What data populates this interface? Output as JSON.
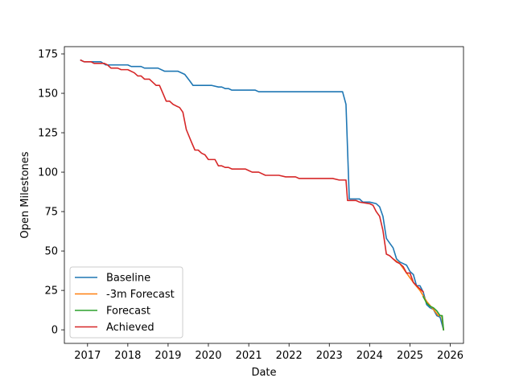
{
  "chart_data": {
    "type": "line",
    "xlabel": "Date",
    "ylabel": "Open Milestones",
    "xlim": [
      "2016-06-05",
      "2026-05-01"
    ],
    "ylim": [
      -8.6,
      179.6
    ],
    "x_ticks": [
      "2017",
      "2018",
      "2019",
      "2020",
      "2021",
      "2022",
      "2023",
      "2024",
      "2025",
      "2026"
    ],
    "y_ticks": [
      0,
      25,
      50,
      75,
      100,
      125,
      150,
      175
    ],
    "grid": false,
    "legend_position": "lower-left",
    "series": [
      {
        "name": "Baseline",
        "color": "#1f77b4",
        "points": [
          [
            "2016-11-01",
            171
          ],
          [
            "2016-12-01",
            170
          ],
          [
            "2017-02-01",
            170
          ],
          [
            "2017-05-01",
            170
          ],
          [
            "2017-06-15",
            168
          ],
          [
            "2017-09-01",
            168
          ],
          [
            "2018-01-01",
            168
          ],
          [
            "2018-02-01",
            167
          ],
          [
            "2018-05-01",
            167
          ],
          [
            "2018-06-01",
            166
          ],
          [
            "2018-10-01",
            166
          ],
          [
            "2018-12-01",
            164
          ],
          [
            "2019-04-01",
            164
          ],
          [
            "2019-06-01",
            162
          ],
          [
            "2019-07-15",
            158
          ],
          [
            "2019-08-15",
            155
          ],
          [
            "2019-10-01",
            155
          ],
          [
            "2020-02-01",
            155
          ],
          [
            "2020-04-01",
            154
          ],
          [
            "2020-05-01",
            154
          ],
          [
            "2020-06-01",
            153
          ],
          [
            "2020-07-01",
            153
          ],
          [
            "2020-08-01",
            152
          ],
          [
            "2020-12-01",
            152
          ],
          [
            "2021-03-01",
            152
          ],
          [
            "2021-04-01",
            151
          ],
          [
            "2022-01-01",
            151
          ],
          [
            "2023-04-01",
            151
          ],
          [
            "2023-05-01",
            151
          ],
          [
            "2023-06-01",
            143
          ],
          [
            "2023-07-01",
            83
          ],
          [
            "2023-10-01",
            83
          ],
          [
            "2023-11-01",
            81
          ],
          [
            "2024-01-01",
            81
          ],
          [
            "2024-03-01",
            80
          ],
          [
            "2024-04-01",
            78
          ],
          [
            "2024-05-01",
            72
          ],
          [
            "2024-06-01",
            58
          ],
          [
            "2024-07-01",
            55
          ],
          [
            "2024-08-01",
            52
          ],
          [
            "2024-09-01",
            45
          ],
          [
            "2024-10-01",
            43
          ],
          [
            "2024-11-01",
            42
          ],
          [
            "2024-12-01",
            41
          ],
          [
            "2025-01-01",
            37
          ],
          [
            "2025-02-01",
            35
          ],
          [
            "2025-03-01",
            28
          ],
          [
            "2025-04-01",
            28
          ],
          [
            "2025-05-01",
            24
          ],
          [
            "2025-06-01",
            16
          ],
          [
            "2025-07-01",
            14
          ],
          [
            "2025-08-01",
            13
          ],
          [
            "2025-09-01",
            9
          ],
          [
            "2025-10-01",
            8
          ],
          [
            "2025-11-01",
            0
          ]
        ]
      },
      {
        "name": "-3m Forecast",
        "color": "#ff7f0e",
        "points": [
          [
            "2024-08-01",
            45
          ],
          [
            "2024-10-01",
            42
          ],
          [
            "2024-12-01",
            36
          ],
          [
            "2025-02-01",
            30
          ],
          [
            "2025-04-01",
            25
          ],
          [
            "2025-06-01",
            18
          ],
          [
            "2025-08-01",
            13
          ],
          [
            "2025-09-15",
            9
          ],
          [
            "2025-10-15",
            9
          ],
          [
            "2025-11-01",
            0
          ]
        ]
      },
      {
        "name": "Forecast",
        "color": "#2ca02c",
        "points": [
          [
            "2025-05-01",
            21
          ],
          [
            "2025-06-01",
            17
          ],
          [
            "2025-07-01",
            15
          ],
          [
            "2025-08-01",
            14
          ],
          [
            "2025-09-01",
            12
          ],
          [
            "2025-10-01",
            9
          ],
          [
            "2025-10-20",
            9
          ],
          [
            "2025-11-01",
            0
          ]
        ]
      },
      {
        "name": "Achieved",
        "color": "#d62728",
        "points": [
          [
            "2016-11-01",
            171
          ],
          [
            "2016-12-01",
            170
          ],
          [
            "2017-02-01",
            170
          ],
          [
            "2017-03-01",
            169
          ],
          [
            "2017-06-01",
            169
          ],
          [
            "2017-07-01",
            168
          ],
          [
            "2017-08-01",
            166
          ],
          [
            "2017-10-01",
            166
          ],
          [
            "2017-11-01",
            165
          ],
          [
            "2018-01-01",
            165
          ],
          [
            "2018-03-01",
            163
          ],
          [
            "2018-04-01",
            161
          ],
          [
            "2018-05-01",
            161
          ],
          [
            "2018-06-01",
            159
          ],
          [
            "2018-07-15",
            159
          ],
          [
            "2018-08-15",
            157
          ],
          [
            "2018-09-15",
            155
          ],
          [
            "2018-10-15",
            155
          ],
          [
            "2018-11-15",
            150
          ],
          [
            "2018-12-15",
            145
          ],
          [
            "2019-01-15",
            145
          ],
          [
            "2019-02-15",
            143
          ],
          [
            "2019-03-15",
            142
          ],
          [
            "2019-04-15",
            141
          ],
          [
            "2019-05-15",
            138
          ],
          [
            "2019-06-15",
            127
          ],
          [
            "2019-08-01",
            119
          ],
          [
            "2019-09-01",
            114
          ],
          [
            "2019-10-01",
            114
          ],
          [
            "2019-11-01",
            112
          ],
          [
            "2019-12-01",
            111
          ],
          [
            "2020-01-01",
            108
          ],
          [
            "2020-03-01",
            108
          ],
          [
            "2020-04-01",
            104
          ],
          [
            "2020-05-01",
            104
          ],
          [
            "2020-06-01",
            103
          ],
          [
            "2020-07-01",
            103
          ],
          [
            "2020-08-01",
            102
          ],
          [
            "2020-10-01",
            102
          ],
          [
            "2020-12-01",
            102
          ],
          [
            "2021-01-01",
            101
          ],
          [
            "2021-02-01",
            100
          ],
          [
            "2021-04-01",
            100
          ],
          [
            "2021-06-01",
            98
          ],
          [
            "2021-08-01",
            98
          ],
          [
            "2021-10-01",
            98
          ],
          [
            "2021-12-01",
            97
          ],
          [
            "2022-03-01",
            97
          ],
          [
            "2022-04-01",
            96
          ],
          [
            "2022-06-01",
            96
          ],
          [
            "2022-10-01",
            96
          ],
          [
            "2023-02-01",
            96
          ],
          [
            "2023-04-01",
            95
          ],
          [
            "2023-06-01",
            95
          ],
          [
            "2023-06-15",
            82
          ],
          [
            "2023-09-01",
            82
          ],
          [
            "2023-10-01",
            81
          ],
          [
            "2024-01-01",
            80
          ],
          [
            "2024-02-01",
            79
          ],
          [
            "2024-03-01",
            75
          ],
          [
            "2024-04-01",
            72
          ],
          [
            "2024-05-01",
            63
          ],
          [
            "2024-06-01",
            48
          ],
          [
            "2024-07-01",
            47
          ],
          [
            "2024-08-01",
            45
          ],
          [
            "2024-09-01",
            43
          ],
          [
            "2024-10-01",
            42
          ],
          [
            "2024-11-01",
            40
          ],
          [
            "2024-12-01",
            36
          ],
          [
            "2025-01-01",
            36
          ],
          [
            "2025-02-01",
            30
          ],
          [
            "2025-03-01",
            28
          ],
          [
            "2025-04-01",
            26
          ],
          [
            "2025-05-01",
            24
          ]
        ]
      }
    ]
  }
}
